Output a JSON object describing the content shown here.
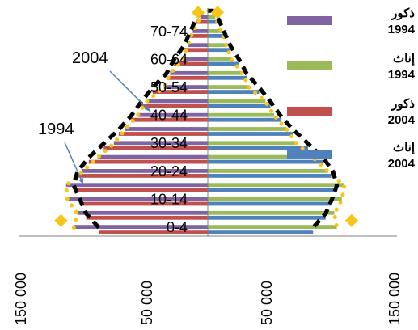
{
  "chart_data": {
    "type": "bar",
    "orientation": "horizontal",
    "layout": "population-pyramid",
    "categories": [
      "0-4",
      "5-9",
      "10-14",
      "15-19",
      "20-24",
      "25-29",
      "30-34",
      "35-39",
      "40-44",
      "45-49",
      "50-54",
      "55-59",
      "60-64",
      "65-69",
      "70-74",
      "75-79"
    ],
    "category_labels": [
      "0-4",
      "",
      "10-14",
      "",
      "20-24",
      "",
      "30-34",
      "",
      "40-44",
      "",
      "50-54",
      "",
      "60-64",
      "",
      "70-74",
      ""
    ],
    "xaxis_tick_labels": [
      "150 000",
      "50 000",
      "50 000",
      "150 000"
    ],
    "xaxis_tick_values": [
      -150000,
      -50000,
      50000,
      150000
    ],
    "xlim": [
      -150000,
      150000
    ],
    "series": [
      {
        "name": "ذكور",
        "year": "1994",
        "side": "left",
        "color": "#8064A2",
        "values": [
          107000,
          104000,
          112000,
          113000,
          100000,
          88000,
          75000,
          66000,
          56000,
          49000,
          35000,
          30000,
          20000,
          16000,
          12000,
          6000
        ]
      },
      {
        "name": "إناث",
        "year": "1994",
        "side": "right",
        "color": "#9BBB59",
        "values": [
          103000,
          101000,
          107000,
          109000,
          96000,
          84000,
          71000,
          63000,
          53000,
          46000,
          33000,
          28000,
          19000,
          15000,
          11000,
          6000
        ]
      },
      {
        "name": "ذكور",
        "year": "2004",
        "side": "left",
        "color": "#C0504D",
        "values": [
          87000,
          97000,
          102000,
          107000,
          104000,
          95000,
          83000,
          71000,
          61000,
          53000,
          44000,
          33000,
          27000,
          19000,
          14000,
          9000
        ]
      },
      {
        "name": "إناث",
        "year": "2004",
        "side": "right",
        "color": "#4F81BD",
        "values": [
          84000,
          94000,
          99000,
          103000,
          100000,
          92000,
          80000,
          68000,
          58000,
          50000,
          41000,
          31000,
          25000,
          18000,
          13000,
          8000
        ]
      }
    ],
    "annotations": [
      "2004",
      "1994"
    ],
    "legend_position": "right",
    "grid": false
  }
}
